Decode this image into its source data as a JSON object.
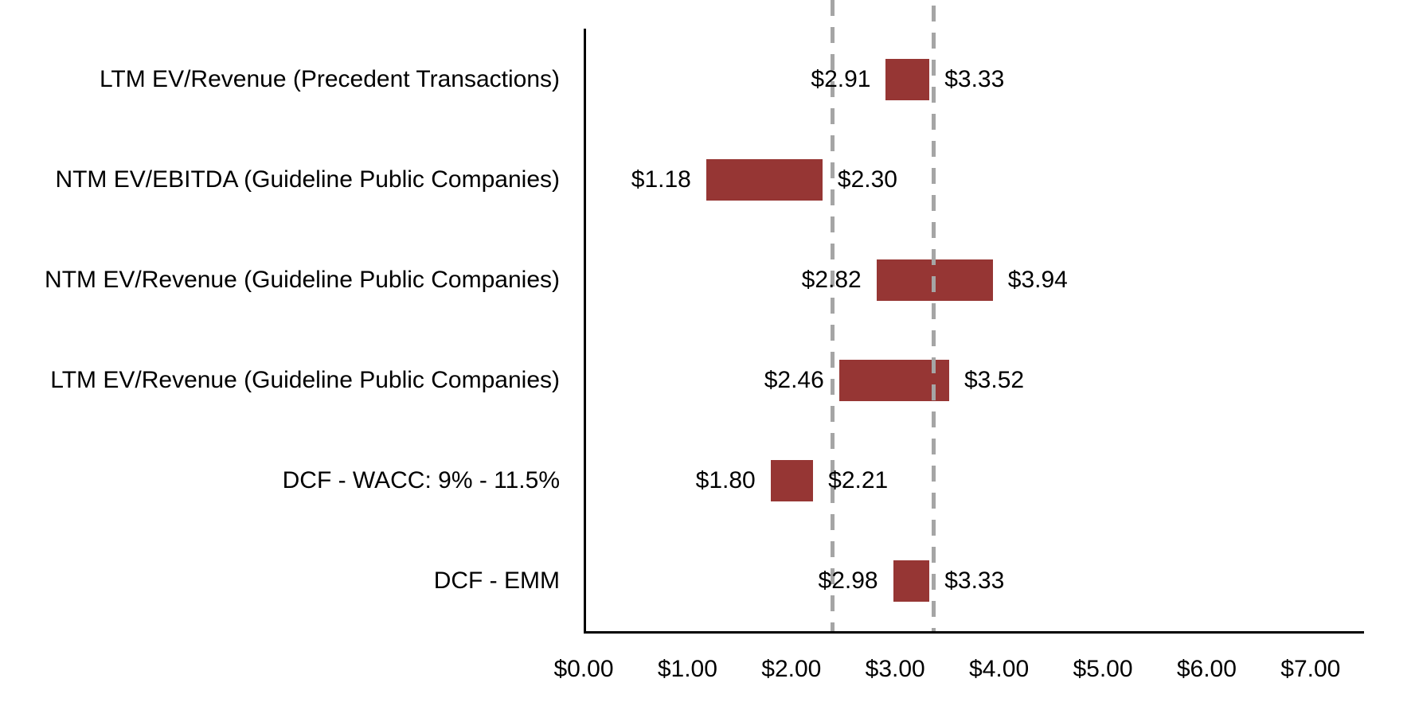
{
  "chart_data": {
    "type": "bar",
    "subtype": "horizontal-floating-range-football-field",
    "title": "",
    "xlabel": "",
    "ylabel": "",
    "grid": false,
    "legend": null,
    "axis": {
      "xmin": 0,
      "xmax_plot": 7.5,
      "tick_step": 1,
      "tick_values": [
        0,
        1,
        2,
        3,
        4,
        5,
        6,
        7
      ],
      "tick_labels": [
        "$0.00",
        "$1.00",
        "$2.00",
        "$3.00",
        "$4.00",
        "$5.00",
        "$6.00",
        "$7.00"
      ]
    },
    "rows": [
      {
        "category": "LTM EV/Revenue (Precedent Transactions)",
        "low": 2.91,
        "high": 3.33,
        "low_label": "$2.91",
        "high_label": "$3.33"
      },
      {
        "category": "NTM EV/EBITDA (Guideline Public Companies)",
        "low": 1.18,
        "high": 2.3,
        "low_label": "$1.18",
        "high_label": "$2.30"
      },
      {
        "category": "NTM EV/Revenue (Guideline Public Companies)",
        "low": 2.82,
        "high": 3.94,
        "low_label": "$2.82",
        "high_label": "$3.94"
      },
      {
        "category": "LTM EV/Revenue (Guideline Public Companies)",
        "low": 2.46,
        "high": 3.52,
        "low_label": "$2.46",
        "high_label": "$3.52"
      },
      {
        "category": "DCF - WACC: 9% - 11.5%",
        "low": 1.8,
        "high": 2.21,
        "low_label": "$1.80",
        "high_label": "$2.21"
      },
      {
        "category": "DCF - EMM",
        "low": 2.98,
        "high": 3.33,
        "low_label": "$2.98",
        "high_label": "$3.33"
      }
    ],
    "reference_lines": [
      {
        "value": 2.4,
        "style": "dashed",
        "color": "#A5A5A5"
      },
      {
        "value": 3.37,
        "style": "dashed",
        "color": "#A5A5A5"
      }
    ],
    "colors": {
      "bar": "#963634",
      "axis": "#000000",
      "text": "#000000",
      "background": "#FFFFFF"
    }
  }
}
